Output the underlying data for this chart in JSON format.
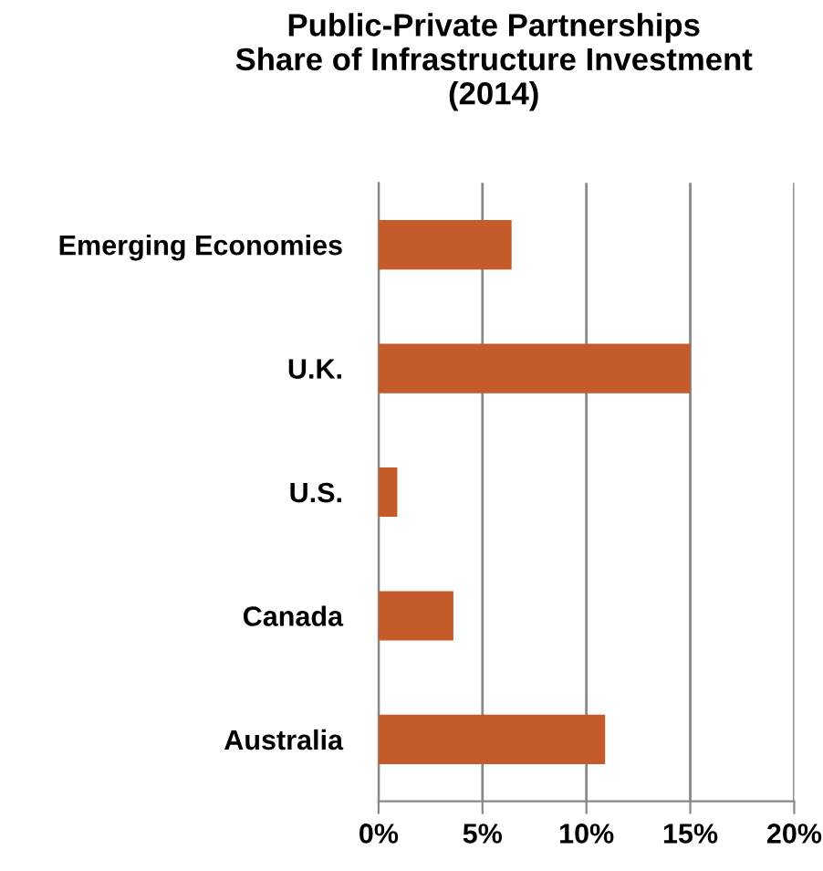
{
  "chart_data": {
    "type": "bar",
    "orientation": "horizontal",
    "title": "Public-Private Partnerships\nShare of Infrastructure Investment\n(2014)",
    "categories": [
      "Emerging Economies",
      "U.K.",
      "U.S.",
      "Canada",
      "Australia"
    ],
    "values": [
      6.4,
      15.0,
      0.9,
      3.6,
      10.9
    ],
    "color": "#c55a2b",
    "xlim": [
      0,
      20
    ],
    "xticks": [
      {
        "value": 0,
        "label": "0%"
      },
      {
        "value": 5,
        "label": "5%"
      },
      {
        "value": 10,
        "label": "10%"
      },
      {
        "value": 15,
        "label": "15%"
      },
      {
        "value": 20,
        "label": "20%"
      }
    ],
    "grid": "x",
    "legend": false
  }
}
